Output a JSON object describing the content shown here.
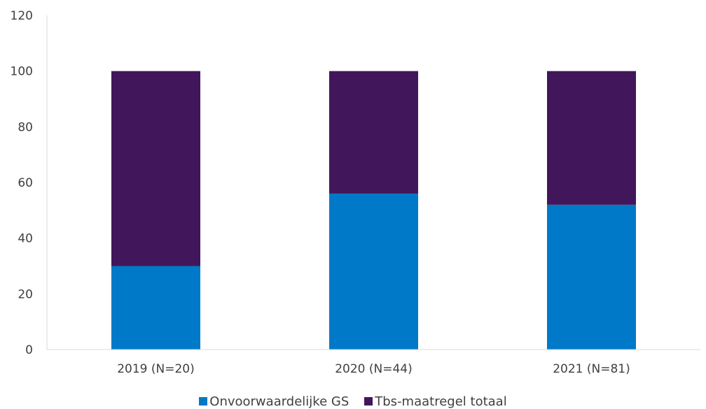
{
  "chart_data": {
    "type": "bar",
    "stacked": true,
    "categories": [
      "2019 (N=20)",
      "2020 (N=44)",
      "2021 (N=81)"
    ],
    "series": [
      {
        "name": "Onvoorwaardelijke GS",
        "values": [
          30,
          56,
          52
        ],
        "color": "#0079C8"
      },
      {
        "name": "Tbs-maatregel totaal",
        "values": [
          70,
          44,
          48
        ],
        "color": "#42165A"
      }
    ],
    "ylim": [
      0,
      120
    ],
    "yticks": [
      "0",
      "20",
      "40",
      "60",
      "80",
      "100",
      "120"
    ],
    "grid": false,
    "legend_position": "bottom"
  }
}
